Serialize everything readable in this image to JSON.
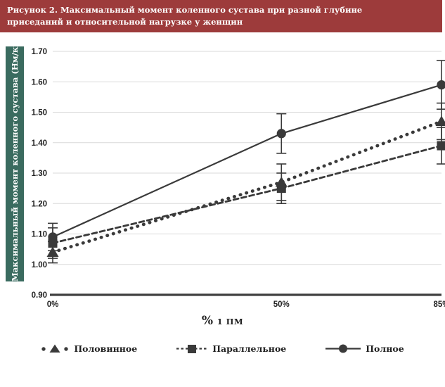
{
  "header": {
    "title": "Рисунок 2. Максимальный момент коленного сустава при разной глубине приседаний и относительной нагрузке у женщин"
  },
  "colors": {
    "header_bg": "#9d3b3b",
    "ylabel_bar_bg": "#3a6b5f",
    "series_color": "#3a3a3a",
    "grid_color": "#d9d9d9",
    "axis_color": "#3f3f3f",
    "tick_text_color": "#222222"
  },
  "chart_data": {
    "type": "line",
    "title": "Рисунок 2. Максимальный момент коленного сустава при разной глубине приседаний и относительной нагрузке у женщин",
    "xlabel": "% 1 ПМ",
    "xlabel_symbol": "%",
    "xlabel_unit": "1 ПМ",
    "ylabel": "Максимальный момент коленного сустава (Нм/кг)",
    "x_categories": [
      "0%",
      "50%",
      "85%"
    ],
    "x_numeric": [
      0,
      50,
      85
    ],
    "ylim": [
      0.9,
      1.7
    ],
    "yticks": [
      "1.70",
      "1.60",
      "1.50",
      "1.40",
      "1.30",
      "1.20",
      "1.10",
      "1.00",
      "0.90"
    ],
    "grid": true,
    "legend_position": "bottom",
    "error_bars": true,
    "series": [
      {
        "name": "Половинное",
        "marker": "triangle",
        "line_style": "dotted",
        "values": [
          1.04,
          1.27,
          1.47
        ],
        "errors": [
          0.035,
          0.06,
          0.06
        ]
      },
      {
        "name": "Параллельное",
        "marker": "square",
        "line_style": "dashed",
        "values": [
          1.07,
          1.25,
          1.39
        ],
        "errors": [
          0.05,
          0.05,
          0.06
        ]
      },
      {
        "name": "Полное",
        "marker": "circle",
        "line_style": "solid",
        "values": [
          1.09,
          1.43,
          1.59
        ],
        "errors": [
          0.045,
          0.065,
          0.08
        ]
      }
    ]
  }
}
